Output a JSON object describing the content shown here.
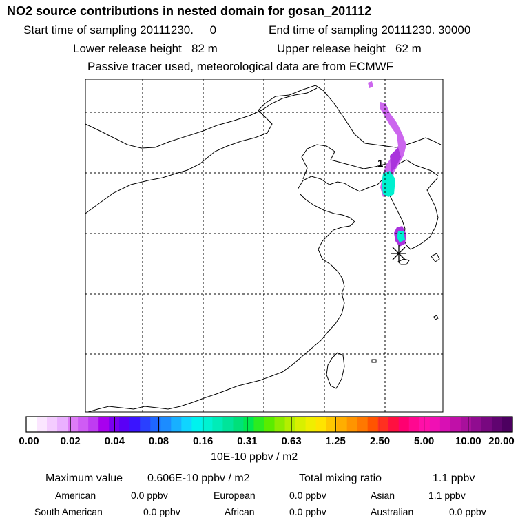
{
  "header": {
    "title": "NO2 source contributions in nested domain for gosan_201112",
    "start_label": "Start time of sampling 20111230.     0",
    "end_label": "End time of sampling 20111230. 30000",
    "lower_height": "Lower release height   82 m",
    "upper_height": "Upper release height   62 m",
    "tracer_note": "Passive tracer used, meteorological data are from ECMWF"
  },
  "map": {
    "source_label": "1",
    "gridline_color": "#000000",
    "land_outline_color": "#000000"
  },
  "colorbar": {
    "ticks": [
      "0.00",
      "0.02",
      "0.04",
      "0.08",
      "0.16",
      "0.31",
      "0.63",
      "1.25",
      "2.50",
      "5.00",
      "10.00",
      "20.00"
    ],
    "units": "10E-10 ppbv / m2",
    "colors": [
      "#ffffff",
      "#fbe6ff",
      "#f4ccff",
      "#eab0ff",
      "#dd7cf6",
      "#cf5cf4",
      "#bf3cf2",
      "#a800ee",
      "#7a00f0",
      "#5a00f6",
      "#3a14ff",
      "#2a40ff",
      "#1e66ff",
      "#1c8cff",
      "#18b0ff",
      "#10d4ff",
      "#00f2ee",
      "#00f2d2",
      "#00ecb8",
      "#00e49a",
      "#00e07a",
      "#00e850",
      "#2cec20",
      "#5aec00",
      "#8cec00",
      "#b4ee00",
      "#d8f000",
      "#f0ee00",
      "#ffe400",
      "#ffc800",
      "#ffae00",
      "#ff9400",
      "#ff7800",
      "#ff5400",
      "#ff3020",
      "#ff1040",
      "#ff0070",
      "#ff0890",
      "#ff10a8",
      "#f010b4",
      "#d810b4",
      "#c010a8",
      "#a8109c",
      "#900c90",
      "#780880",
      "#600470",
      "#4c0060"
    ],
    "plume_colors": {
      "outer": "#cc66ee",
      "mid": "#aa33dd",
      "core": "#00f0d0"
    }
  },
  "summary": {
    "max_label": "Maximum value",
    "max_value": "0.606E-10 ppbv / m2",
    "total_label": "Total mixing ratio",
    "total_value": "1.1 ppbv",
    "regions": [
      {
        "name": "American",
        "value": "0.0 ppbv"
      },
      {
        "name": "European",
        "value": "0.0 ppbv"
      },
      {
        "name": "Asian",
        "value": "1.1 ppbv"
      },
      {
        "name": "South American",
        "value": "0.0 ppbv"
      },
      {
        "name": "African",
        "value": "0.0 ppbv"
      },
      {
        "name": "Australian",
        "value": "0.0 ppbv"
      }
    ]
  }
}
